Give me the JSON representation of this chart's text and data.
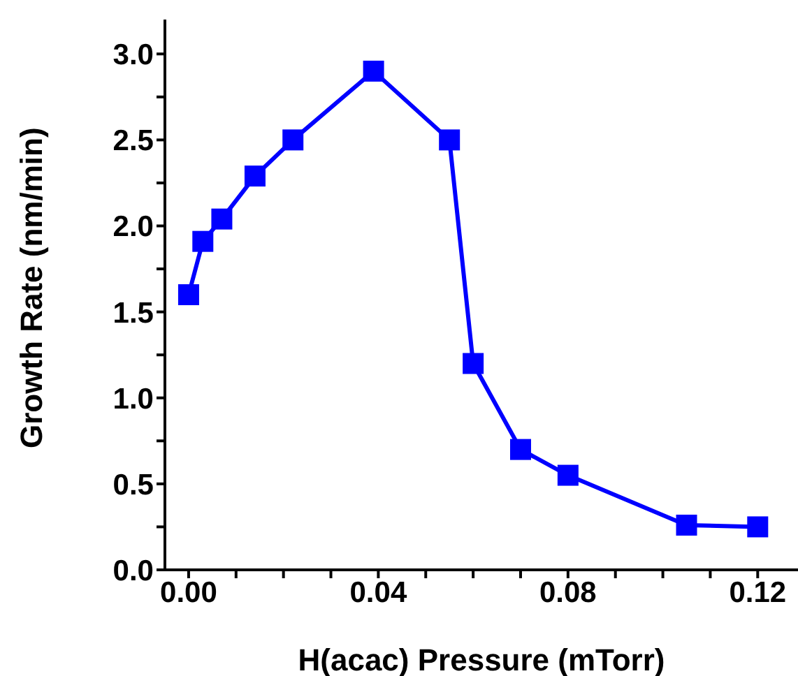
{
  "chart_data": {
    "type": "line",
    "xlabel": "H(acac) Pressure (mTorr)",
    "ylabel": "Growth Rate (nm/min)",
    "x": [
      0,
      0.003,
      0.007,
      0.014,
      0.022,
      0.039,
      0.055,
      0.06,
      0.07,
      0.08,
      0.105,
      0.12
    ],
    "series": [
      {
        "color": "#0000ff",
        "values": [
          1.6,
          1.91,
          2.04,
          2.29,
          2.5,
          2.9,
          2.5,
          1.2,
          0.7,
          0.55,
          0.26,
          0.25
        ]
      }
    ],
    "xlim": [
      -0.005,
      0.1285
    ],
    "ylim": [
      0,
      3.2
    ],
    "xticks": [
      {
        "value": 0,
        "label": "0.00"
      },
      {
        "value": 0.01,
        "label": null
      },
      {
        "value": 0.02,
        "label": null
      },
      {
        "value": 0.03,
        "label": null
      },
      {
        "value": 0.04,
        "label": "0.04"
      },
      {
        "value": 0.05,
        "label": null
      },
      {
        "value": 0.06,
        "label": null
      },
      {
        "value": 0.07,
        "label": null
      },
      {
        "value": 0.08,
        "label": "0.08"
      },
      {
        "value": 0.09,
        "label": null
      },
      {
        "value": 0.1,
        "label": null
      },
      {
        "value": 0.11,
        "label": null
      },
      {
        "value": 0.12,
        "label": "0.12"
      }
    ],
    "yticks": [
      {
        "value": 0,
        "label": "0.0"
      },
      {
        "value": 0.25,
        "label": null
      },
      {
        "value": 0.5,
        "label": "0.5"
      },
      {
        "value": 0.75,
        "label": null
      },
      {
        "value": 1,
        "label": "1.0"
      },
      {
        "value": 1.25,
        "label": null
      },
      {
        "value": 1.5,
        "label": "1.5"
      },
      {
        "value": 1.75,
        "label": null
      },
      {
        "value": 2,
        "label": "2.0"
      },
      {
        "value": 2.25,
        "label": null
      },
      {
        "value": 2.5,
        "label": "2.5"
      },
      {
        "value": 2.75,
        "label": null
      },
      {
        "value": 3,
        "label": "3.0"
      }
    ],
    "grid": false,
    "legend": false,
    "marker": "square",
    "line_style": "solid"
  }
}
